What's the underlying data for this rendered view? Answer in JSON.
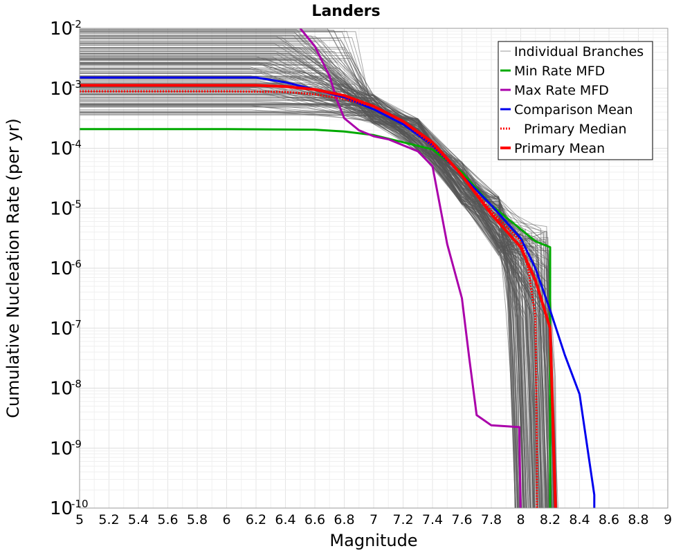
{
  "chart_data": {
    "type": "line",
    "title": "Landers",
    "xlabel": "Magnitude",
    "ylabel": "Cumulative Nucleation Rate (per yr)",
    "xlim": [
      5,
      9
    ],
    "ylim_log10": [
      -10,
      -2
    ],
    "x_ticks": [
      "5",
      "5.2",
      "5.4",
      "5.6",
      "5.8",
      "6",
      "6.2",
      "6.4",
      "6.6",
      "6.8",
      "7",
      "7.2",
      "7.4",
      "7.6",
      "7.8",
      "8",
      "8.2",
      "8.4",
      "8.6",
      "8.8",
      "9"
    ],
    "y_ticks": [
      {
        "base": "10",
        "exp": "-2"
      },
      {
        "base": "10",
        "exp": "-3"
      },
      {
        "base": "10",
        "exp": "-4"
      },
      {
        "base": "10",
        "exp": "-5"
      },
      {
        "base": "10",
        "exp": "-6"
      },
      {
        "base": "10",
        "exp": "-7"
      },
      {
        "base": "10",
        "exp": "-8"
      },
      {
        "base": "10",
        "exp": "-9"
      },
      {
        "base": "10",
        "exp": "-10"
      }
    ],
    "grid": true,
    "legend_position": "top-right",
    "individual_branches": {
      "name": "Individual Branches",
      "color": "#555555",
      "count": 170
    },
    "series": [
      {
        "name": "Min Rate MFD",
        "color": "#00aa00",
        "style": "solid",
        "x": [
          5.0,
          6.0,
          6.6,
          6.8,
          7.0,
          7.2,
          7.4,
          7.6,
          7.8,
          8.0,
          8.1,
          8.2,
          8.2
        ],
        "log10y": [
          -3.68,
          -3.68,
          -3.69,
          -3.72,
          -3.78,
          -3.9,
          -4.02,
          -4.4,
          -4.95,
          -5.35,
          -5.55,
          -5.65,
          -10.2
        ]
      },
      {
        "name": "Max Rate MFD",
        "color": "#aa00aa",
        "style": "solid",
        "x": [
          6.5,
          6.6,
          6.7,
          6.75,
          6.8,
          6.9,
          7.0,
          7.1,
          7.3,
          7.4,
          7.5,
          7.6,
          7.65,
          7.7,
          7.8,
          7.99,
          8.0
        ],
        "log10y": [
          -2.0,
          -2.3,
          -2.8,
          -3.2,
          -3.5,
          -3.7,
          -3.8,
          -3.85,
          -4.05,
          -4.3,
          -5.6,
          -6.5,
          -7.5,
          -8.45,
          -8.62,
          -8.65,
          -10.2
        ]
      },
      {
        "name": "Comparison Mean",
        "color": "#0000ee",
        "style": "solid",
        "x": [
          5.0,
          6.2,
          6.4,
          6.6,
          6.8,
          7.0,
          7.2,
          7.4,
          7.6,
          7.8,
          8.0,
          8.1,
          8.2,
          8.3,
          8.4,
          8.5,
          8.5
        ],
        "log10y": [
          -2.82,
          -2.82,
          -2.9,
          -3.02,
          -3.15,
          -3.35,
          -3.6,
          -3.95,
          -4.45,
          -4.95,
          -5.5,
          -6.0,
          -6.7,
          -7.45,
          -8.1,
          -9.78,
          -10.2
        ]
      },
      {
        "name": "Primary Median",
        "color": "#ff0000",
        "style": "dotted",
        "x": [
          5.0,
          6.0,
          6.4,
          6.6,
          6.8,
          7.0,
          7.2,
          7.4,
          7.6,
          7.8,
          8.0,
          8.05,
          8.1,
          8.11,
          8.11
        ],
        "log10y": [
          -3.05,
          -3.05,
          -3.06,
          -3.1,
          -3.18,
          -3.3,
          -3.55,
          -3.95,
          -4.45,
          -5.05,
          -5.55,
          -6.0,
          -6.8,
          -9.0,
          -10.2
        ]
      },
      {
        "name": "Primary Mean",
        "color": "#ff0000",
        "style": "thick",
        "x": [
          5.0,
          6.2,
          6.4,
          6.6,
          6.8,
          7.0,
          7.2,
          7.4,
          7.6,
          7.8,
          8.0,
          8.1,
          8.2,
          8.23,
          8.24
        ],
        "log10y": [
          -2.95,
          -2.95,
          -2.97,
          -3.02,
          -3.12,
          -3.3,
          -3.55,
          -3.9,
          -4.45,
          -5.1,
          -5.65,
          -6.2,
          -7.0,
          -9.5,
          -10.2
        ]
      }
    ]
  }
}
